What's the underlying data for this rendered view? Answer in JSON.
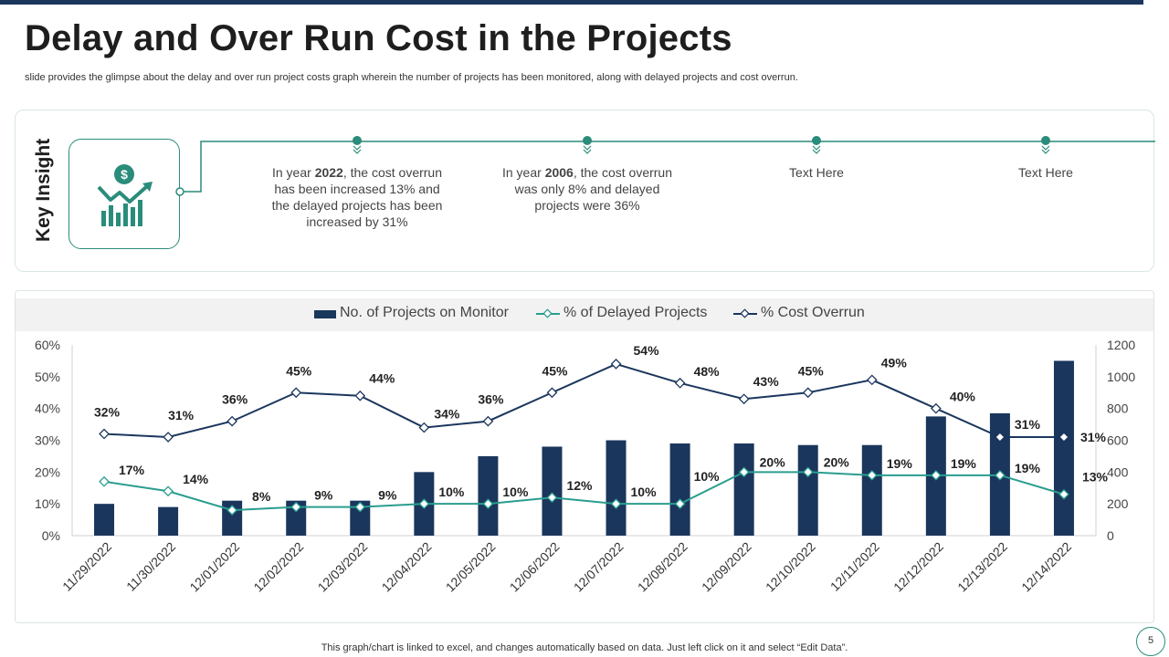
{
  "slide": {
    "title": "Delay and Over Run Cost in the Projects",
    "subtitle": "slide provides the glimpse about the delay and over run project costs graph wherein the number of projects has been monitored, along with delayed projects and cost overrun.",
    "footnote": "This graph/chart is linked to excel,  and changes automatically based on data. Just left click on it and select “Edit Data”.",
    "page_number": "5"
  },
  "insight": {
    "heading": "Key Insight",
    "icon": "dollar-growth-chart-icon",
    "items": [
      {
        "pre": "In year ",
        "bold": "2022",
        "post": ", the cost overrun has been increased 13% and the delayed projects has been increased by 31%"
      },
      {
        "pre": "In year ",
        "bold": "2006",
        "post": ", the cost overrun was only 8% and delayed projects were 36%"
      },
      {
        "pre": "",
        "bold": "",
        "post": "Text Here"
      },
      {
        "pre": "",
        "bold": "",
        "post": "Text Here"
      }
    ]
  },
  "colors": {
    "bar": "#1b365d",
    "delayed": "#2a9d8f",
    "overrun": "#1b365d",
    "accent": "#2a8c7a"
  },
  "chart_data": {
    "type": "bar",
    "categories": [
      "11/29/2022",
      "11/30/2022",
      "12/01/2022",
      "12/02/2022",
      "12/03/2022",
      "12/04/2022",
      "12/05/2022",
      "12/06/2022",
      "12/07/2022",
      "12/08/2022",
      "12/09/2022",
      "12/10/2022",
      "12/11/2022",
      "12/12/2022",
      "12/13/2022",
      "12/14/2022"
    ],
    "series": [
      {
        "name": "No. of Projects on Monitor",
        "kind": "bar",
        "axis": "right",
        "values": [
          200,
          180,
          220,
          220,
          220,
          400,
          500,
          560,
          600,
          580,
          580,
          570,
          570,
          750,
          770,
          1100
        ]
      },
      {
        "name": "% of Delayed Projects",
        "kind": "line",
        "axis": "left",
        "values": [
          17,
          14,
          8,
          9,
          9,
          10,
          10,
          12,
          10,
          10,
          20,
          20,
          19,
          19,
          19,
          13
        ],
        "labels": [
          "17%",
          "14%",
          "8%",
          "9%",
          "9%",
          "10%",
          "10%",
          "12%",
          "10%",
          "10%",
          "20%",
          "20%",
          "19%",
          "19%",
          "19%",
          "13%"
        ]
      },
      {
        "name": "% Cost Overrun",
        "kind": "line",
        "axis": "left",
        "values": [
          32,
          31,
          36,
          45,
          44,
          34,
          36,
          45,
          54,
          48,
          43,
          45,
          49,
          40,
          31,
          31
        ],
        "labels": [
          "32%",
          "31%",
          "36%",
          "45%",
          "44%",
          "34%",
          "36%",
          "45%",
          "54%",
          "48%",
          "43%",
          "45%",
          "49%",
          "40%",
          "31%",
          "31%"
        ]
      }
    ],
    "left_axis": {
      "ylim": [
        0,
        60
      ],
      "ticks": [
        "0%",
        "10%",
        "20%",
        "30%",
        "40%",
        "50%",
        "60%"
      ]
    },
    "right_axis": {
      "ylim": [
        0,
        1200
      ],
      "ticks": [
        "0",
        "200",
        "400",
        "600",
        "800",
        "1000",
        "1200"
      ]
    },
    "legend_position": "top"
  }
}
